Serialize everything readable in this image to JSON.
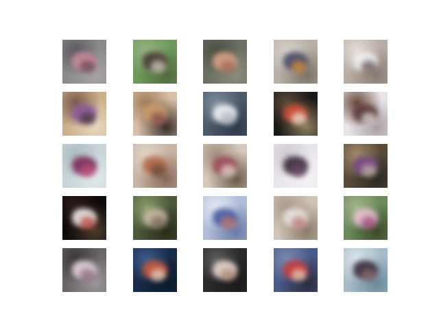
{
  "grid": {
    "rows": 5,
    "columns": 5,
    "tiles": [
      {
        "bg": [
          "#8a8a8c",
          "#5c5a60",
          "#a7a3a0"
        ],
        "blobs": [
          "#c98a9a",
          "#6a4a5a"
        ]
      },
      {
        "bg": [
          "#6c9a5c",
          "#97b07e",
          "#4f6a3c"
        ],
        "blobs": [
          "#4a3a3a",
          "#cfc6b8"
        ]
      },
      {
        "bg": [
          "#6a7062",
          "#4a5044",
          "#8a8c7a"
        ],
        "blobs": [
          "#d9a286",
          "#a06a5a"
        ]
      },
      {
        "bg": [
          "#b7b0a6",
          "#d6cfc8",
          "#7a7468"
        ],
        "blobs": [
          "#4a4a6a",
          "#d08a3a"
        ]
      },
      {
        "bg": [
          "#b8aca4",
          "#e4dcd8",
          "#8a7c74"
        ],
        "blobs": [
          "#f2f0f2",
          "#6a5a5a"
        ]
      },
      {
        "bg": [
          "#cab08c",
          "#7a5a4a",
          "#e8d8c0"
        ],
        "blobs": [
          "#8a5aa0",
          "#4a3a3a"
        ]
      },
      {
        "bg": [
          "#d8c0a8",
          "#a07a5a",
          "#3a2e2a"
        ],
        "blobs": [
          "#c89a6a",
          "#8a4a4a"
        ]
      },
      {
        "bg": [
          "#4c5a6a",
          "#7a8a9a",
          "#2e3a4a"
        ],
        "blobs": [
          "#f2f2f4",
          "#b0b6c0"
        ]
      },
      {
        "bg": [
          "#1a1816",
          "#5a4a3a",
          "#8a7a5a"
        ],
        "blobs": [
          "#d2503a",
          "#f0e0d0"
        ]
      },
      {
        "bg": [
          "#e8e4ea",
          "#6a4a3a",
          "#a8a0a0"
        ],
        "blobs": [
          "#5a3a3a",
          "#d8d0d0"
        ]
      },
      {
        "bg": [
          "#c8d4d8",
          "#aebcc0",
          "#dfe8ea"
        ],
        "blobs": [
          "#7a2a5a",
          "#c0507a"
        ]
      },
      {
        "bg": [
          "#c8b4a4",
          "#e0d4c8",
          "#8a6a5a"
        ],
        "blobs": [
          "#b06a4a",
          "#6a4a3a"
        ]
      },
      {
        "bg": [
          "#d6c8bc",
          "#a0907e",
          "#6a5a4a"
        ],
        "blobs": [
          "#9a4a5a",
          "#e0d4c8"
        ]
      },
      {
        "bg": [
          "#e8e6ea",
          "#cfcad0",
          "#f4f2f4"
        ],
        "blobs": [
          "#3a2a3a",
          "#6a4a6a"
        ]
      },
      {
        "bg": [
          "#5a4a3a",
          "#a08a6a",
          "#2a2a24"
        ],
        "blobs": [
          "#7a4a8a",
          "#c0b0a0"
        ]
      },
      {
        "bg": [
          "#0e0a0a",
          "#2a1a1a",
          "#4a3a2a"
        ],
        "blobs": [
          "#f2eaea",
          "#c04a3a"
        ]
      },
      {
        "bg": [
          "#4a5a3a",
          "#8a9a6a",
          "#2a2a1a"
        ],
        "blobs": [
          "#c8b8a0",
          "#7a6a5a"
        ]
      },
      {
        "bg": [
          "#b0bcd8",
          "#e4e8f2",
          "#6a7aa8"
        ],
        "blobs": [
          "#4a5aa0",
          "#c07a6a"
        ]
      },
      {
        "bg": [
          "#d0c4b8",
          "#a89888",
          "#8a7a6a"
        ],
        "blobs": [
          "#e8e4e0",
          "#c07a7a"
        ]
      },
      {
        "bg": [
          "#6a8a5a",
          "#a0b48a",
          "#3a4a2a"
        ],
        "blobs": [
          "#e8c0d0",
          "#9a4a7a"
        ]
      },
      {
        "bg": [
          "#6a6668",
          "#3a3638",
          "#9a9698"
        ],
        "blobs": [
          "#e4d4e0",
          "#8a6a7a"
        ]
      },
      {
        "bg": [
          "#1a2a4a",
          "#3a5a8a",
          "#0a1a2a"
        ],
        "blobs": [
          "#c85a3a",
          "#e8d0c0"
        ]
      },
      {
        "bg": [
          "#2a2a2a",
          "#5a5a5a",
          "#1a1a1a"
        ],
        "blobs": [
          "#e8d8d0",
          "#b08a7a"
        ]
      },
      {
        "bg": [
          "#4a5a8a",
          "#7a8ab0",
          "#2a2a3a"
        ],
        "blobs": [
          "#c83a3a",
          "#e8c8b0"
        ]
      },
      {
        "bg": [
          "#a8bcc8",
          "#d8e4ea",
          "#6a8a9a"
        ],
        "blobs": [
          "#3a2a3a",
          "#8a6a6a"
        ]
      }
    ]
  }
}
